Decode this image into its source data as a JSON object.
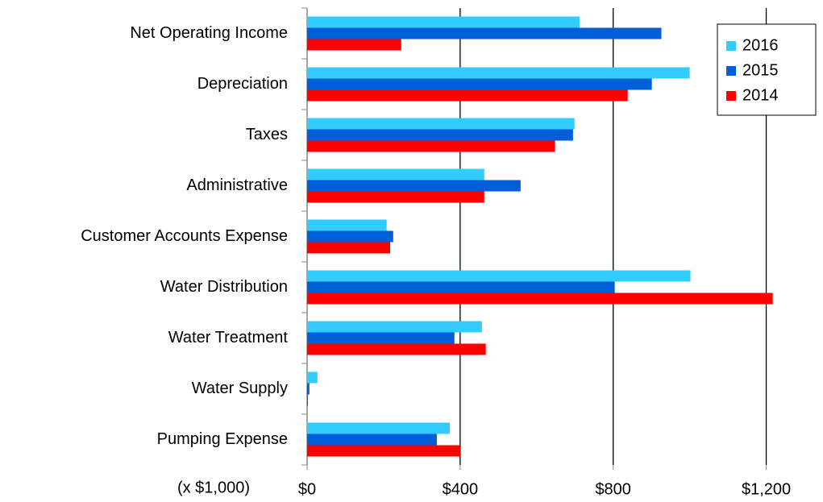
{
  "chart_data": {
    "type": "hbar",
    "annotation": "(x $1,000)",
    "categories": [
      "Net Operating Income",
      "Depreciation",
      "Taxes",
      "Administrative",
      "Customer Accounts Expense",
      "Water Distribution",
      "Water Treatment",
      "Water Supply",
      "Pumping Expense"
    ],
    "series": [
      {
        "name": "2016",
        "color": "#33ccff",
        "values": [
          712,
          1000,
          699,
          463,
          208,
          1002,
          457,
          27,
          373
        ]
      },
      {
        "name": "2015",
        "color": "#005ed8",
        "values": [
          926,
          901,
          695,
          558,
          225,
          804,
          385,
          6,
          339
        ]
      },
      {
        "name": "2014",
        "color": "#ff0000",
        "values": [
          246,
          838,
          648,
          463,
          217,
          1217,
          467,
          2,
          400
        ]
      }
    ],
    "xlim": [
      0,
      1340
    ],
    "xticks": [
      {
        "value": 0,
        "label": "$0"
      },
      {
        "value": 400,
        "label": "$400"
      },
      {
        "value": 800,
        "label": "$800"
      },
      {
        "value": 1200,
        "label": "$1,200"
      }
    ],
    "grid": true,
    "legend": "upper right"
  }
}
